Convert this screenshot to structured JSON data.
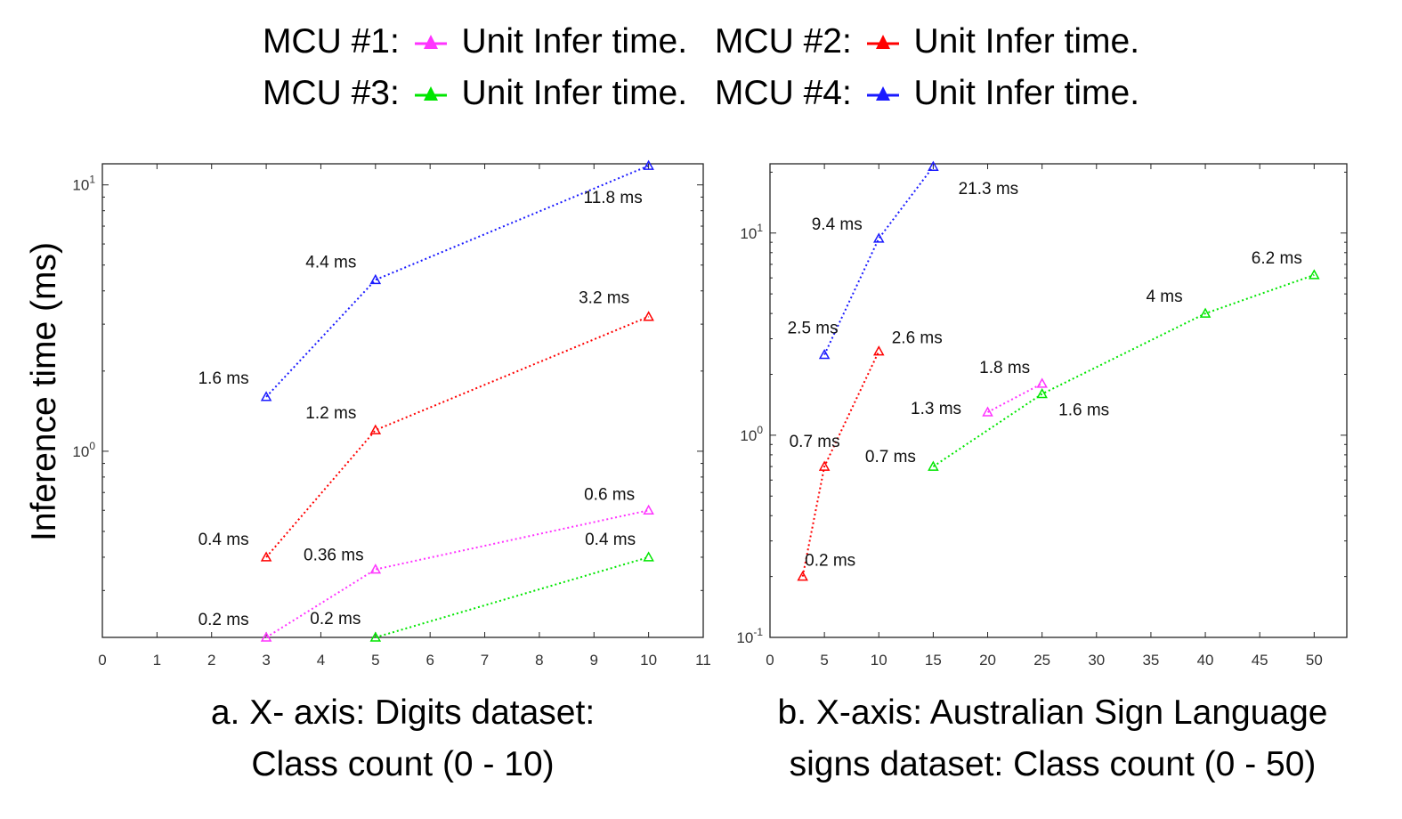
{
  "legend": {
    "entries": [
      {
        "mcu": "MCU #1:",
        "text": "Unit Infer time.",
        "color": "#ff33ff"
      },
      {
        "mcu": "MCU #2:",
        "text": "Unit Infer time.",
        "color": "#ff0000"
      },
      {
        "mcu": "MCU #3:",
        "text": "Unit Infer time.",
        "color": "#00e600"
      },
      {
        "mcu": "MCU #4:",
        "text": "Unit Infer time.",
        "color": "#1a1aff"
      }
    ]
  },
  "y_axis_label": "Inference time (ms)",
  "captions": {
    "a": [
      "a. X- axis: Digits dataset:",
      "Class count (0 - 10)"
    ],
    "b": [
      "b. X-axis: Australian Sign Language",
      "signs dataset: Class count (0 - 50)"
    ]
  },
  "chart_data": [
    {
      "type": "line",
      "y_scale": "log",
      "xlim": [
        0,
        11
      ],
      "ylim": [
        0.2,
        12
      ],
      "xticks": [
        0,
        1,
        2,
        3,
        4,
        5,
        6,
        7,
        8,
        9,
        10,
        11
      ],
      "yticks": [
        {
          "value": 1,
          "label": "10",
          "exp": "0"
        },
        {
          "value": 10,
          "label": "10",
          "exp": "1"
        }
      ],
      "grid": false,
      "series": [
        {
          "name": "MCU #1",
          "color": "#ff33ff",
          "x": [
            3,
            5,
            10
          ],
          "y": [
            0.2,
            0.36,
            0.6
          ],
          "labels": [
            "0.2 ms",
            "0.36 ms",
            "0.6 ms"
          ]
        },
        {
          "name": "MCU #2",
          "color": "#ff0000",
          "x": [
            3,
            5,
            10
          ],
          "y": [
            0.4,
            1.2,
            3.2
          ],
          "labels": [
            "0.4 ms",
            "1.2 ms",
            "3.2 ms"
          ]
        },
        {
          "name": "MCU #3",
          "color": "#00e600",
          "x": [
            5,
            10
          ],
          "y": [
            0.2,
            0.4
          ],
          "labels": [
            "0.2 ms",
            "0.4 ms"
          ]
        },
        {
          "name": "MCU #4",
          "color": "#1a1aff",
          "x": [
            3,
            5,
            10
          ],
          "y": [
            1.6,
            4.4,
            11.8
          ],
          "labels": [
            "1.6 ms",
            "4.4 ms",
            "11.8 ms"
          ]
        }
      ]
    },
    {
      "type": "line",
      "y_scale": "log",
      "xlim": [
        0,
        53
      ],
      "ylim": [
        0.1,
        22
      ],
      "xticks": [
        0,
        5,
        10,
        15,
        20,
        25,
        30,
        35,
        40,
        45,
        50
      ],
      "yticks": [
        {
          "value": 0.1,
          "label": "10",
          "exp": "-1"
        },
        {
          "value": 1,
          "label": "10",
          "exp": "0"
        },
        {
          "value": 10,
          "label": "10",
          "exp": "1"
        }
      ],
      "grid": false,
      "series": [
        {
          "name": "MCU #1",
          "color": "#ff33ff",
          "x": [
            20,
            25
          ],
          "y": [
            1.3,
            1.8
          ],
          "labels": [
            "1.3 ms",
            "1.8 ms"
          ]
        },
        {
          "name": "MCU #2",
          "color": "#ff0000",
          "x": [
            3,
            5,
            10
          ],
          "y": [
            0.2,
            0.7,
            2.6
          ],
          "labels": [
            "0.2 ms",
            "0.7 ms",
            "2.6 ms"
          ]
        },
        {
          "name": "MCU #3",
          "color": "#00e600",
          "x": [
            15,
            25,
            40,
            50
          ],
          "y": [
            0.7,
            1.6,
            4,
            6.2
          ],
          "labels": [
            "0.7 ms",
            "1.6 ms",
            "4 ms",
            "6.2 ms"
          ]
        },
        {
          "name": "MCU #4",
          "color": "#1a1aff",
          "x": [
            5,
            10,
            15
          ],
          "y": [
            2.5,
            9.4,
            21.3
          ],
          "labels": [
            "2.5 ms",
            "9.4 ms",
            "21.3 ms"
          ]
        }
      ]
    }
  ]
}
